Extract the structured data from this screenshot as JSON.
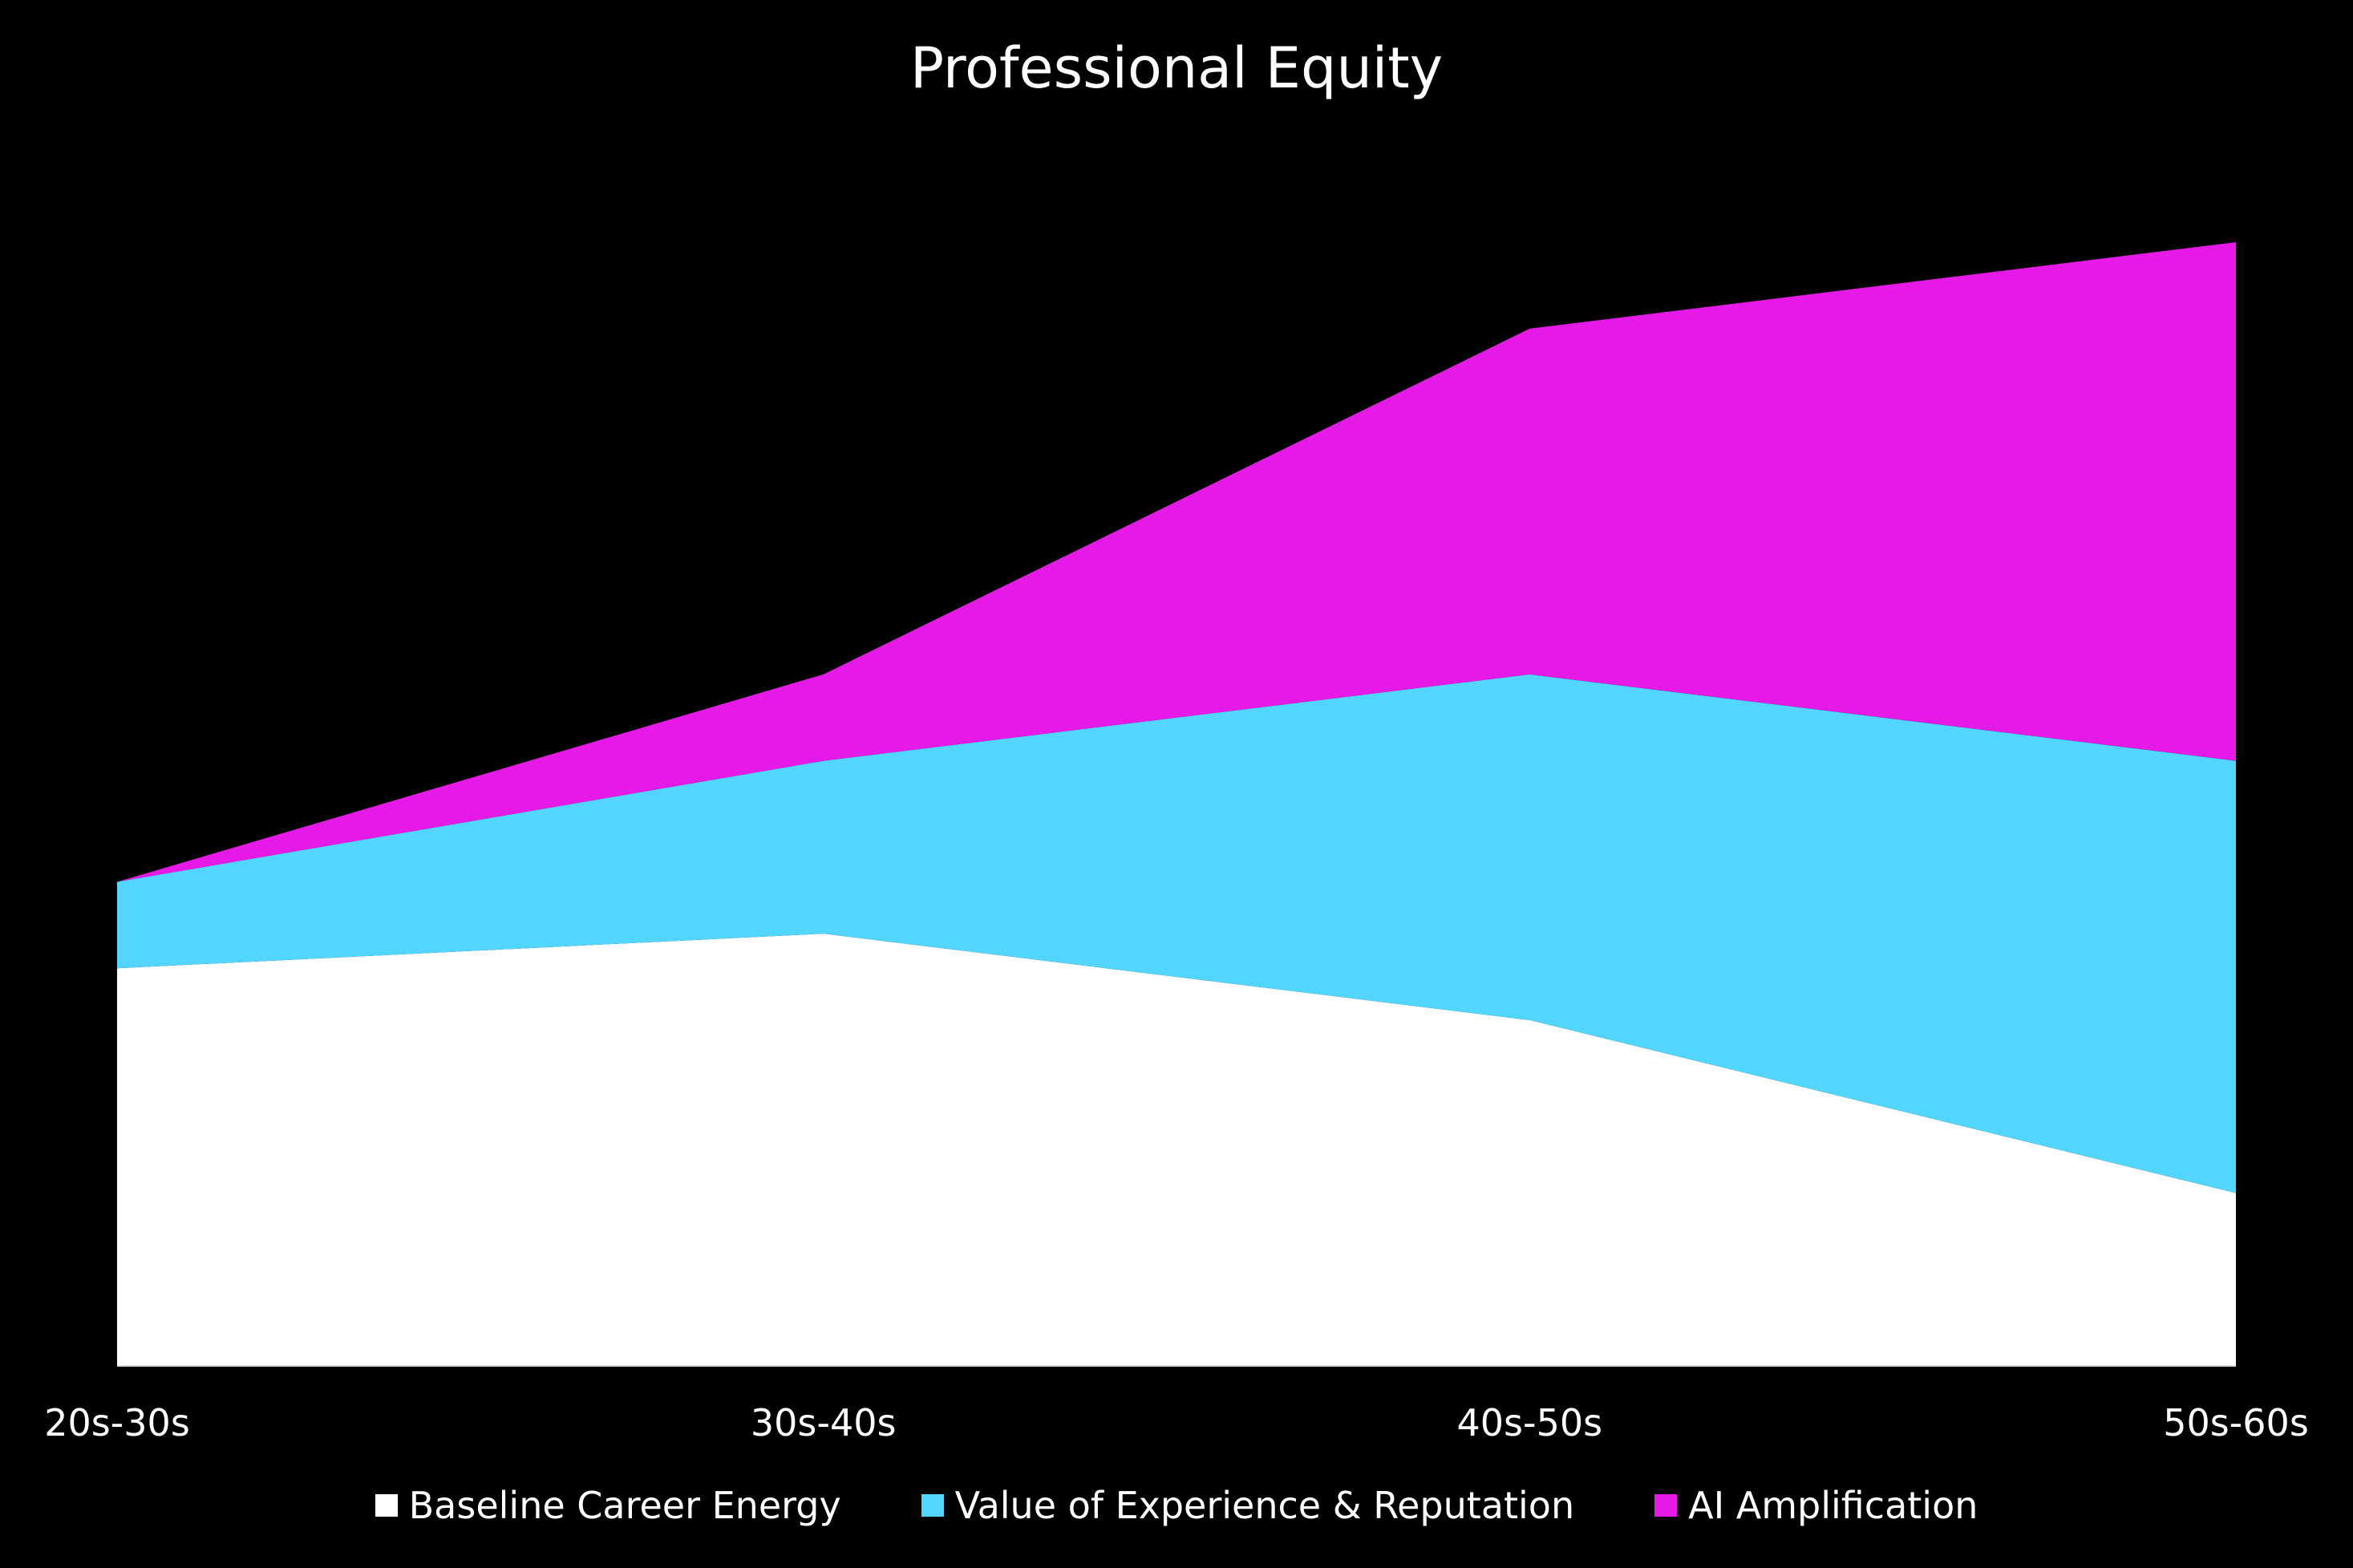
{
  "chart_data": {
    "type": "area",
    "stacked": true,
    "title": "Professional Equity",
    "xlabel": "",
    "ylabel": "",
    "categories": [
      "20s-30s",
      "30s-40s",
      "40s-50s",
      "50s-60s"
    ],
    "series": [
      {
        "name": "Baseline Career Energy",
        "color": "#ffffff",
        "values": [
          4.6,
          5,
          4,
          2
        ]
      },
      {
        "name": "Value of Experience & Reputation",
        "color": "#52d5fe",
        "values": [
          1,
          2,
          4,
          5
        ]
      },
      {
        "name": "AI Amplification",
        "color": "#e61ae6",
        "values": [
          0,
          1,
          4,
          6
        ]
      }
    ],
    "ylim": [
      0,
      13
    ],
    "grid": false,
    "legend_position": "bottom"
  }
}
